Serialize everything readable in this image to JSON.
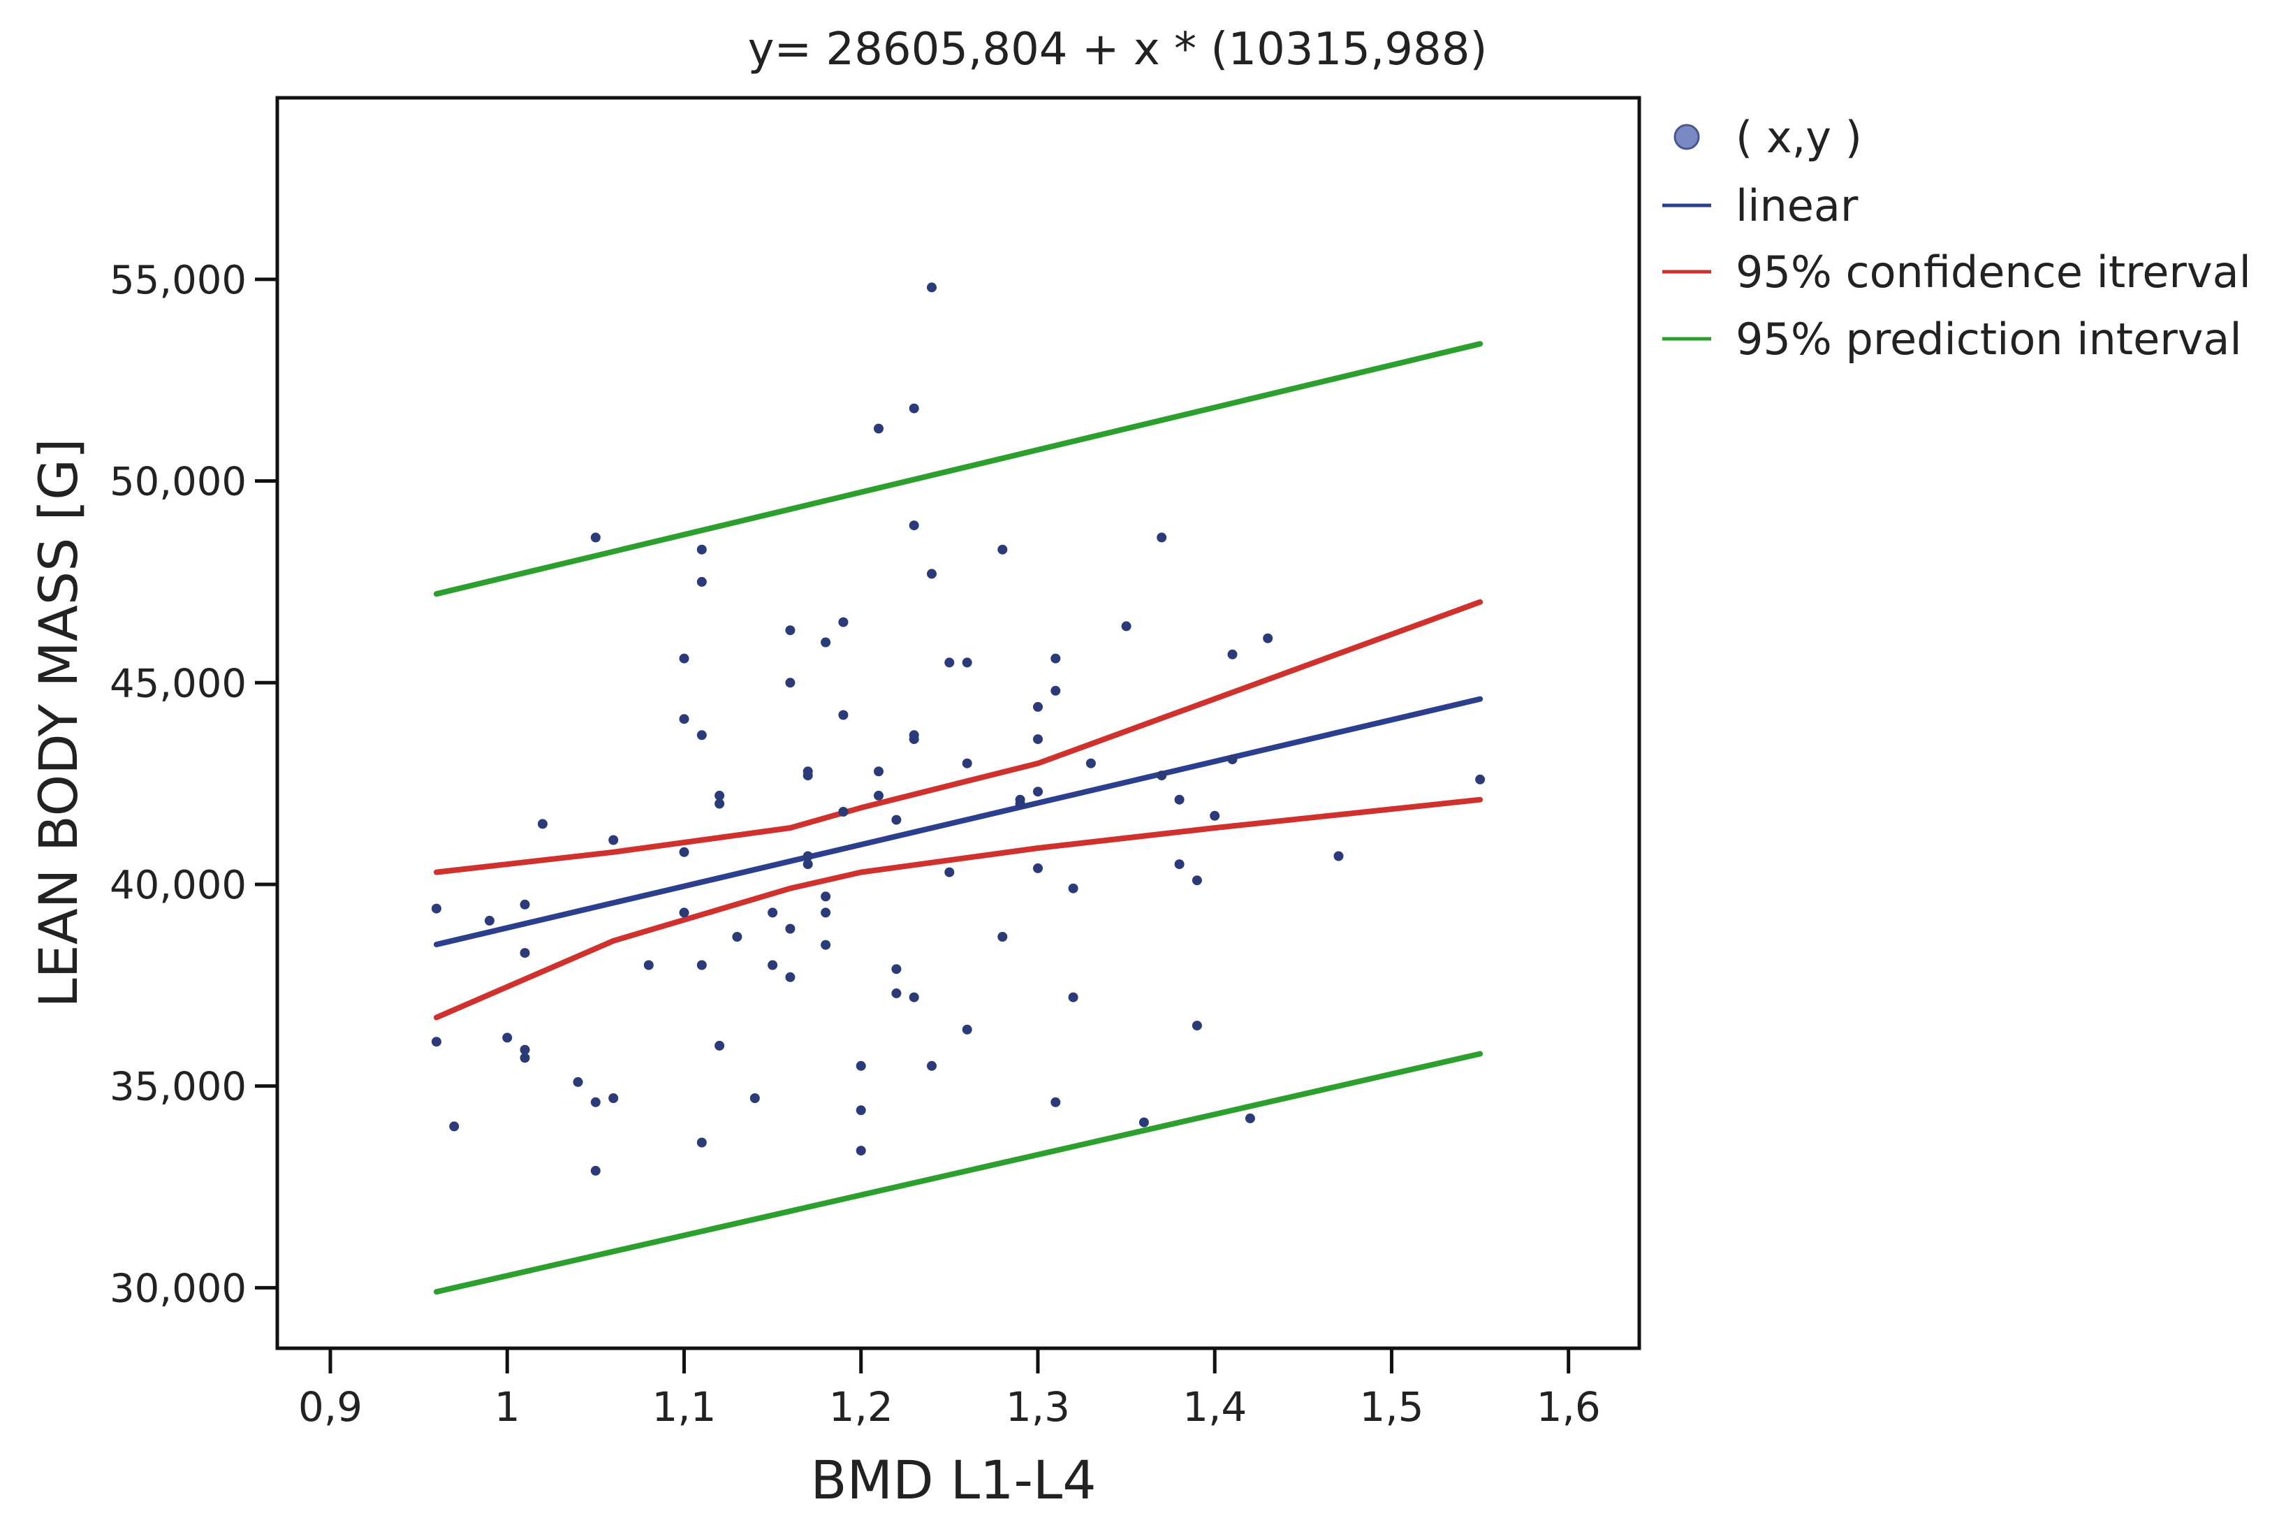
{
  "chart_data": {
    "type": "scatter",
    "title": "y= 28605,804 + x * (10315,988)",
    "xlabel": "BMD L1-L4",
    "ylabel": "LEAN BODY MASS [G]",
    "xlim": [
      0.87,
      1.64
    ],
    "ylim": [
      28500,
      59500
    ],
    "x_ticks": [
      0.9,
      1.0,
      1.1,
      1.2,
      1.3,
      1.4,
      1.5,
      1.6
    ],
    "x_tick_labels": [
      "0,9",
      "1",
      "1,1",
      "1,2",
      "1,3",
      "1,4",
      "1,5",
      "1,6"
    ],
    "y_ticks": [
      30000,
      35000,
      40000,
      45000,
      50000,
      55000
    ],
    "y_tick_labels": [
      "30,000",
      "35,000",
      "40,000",
      "45,000",
      "50,000",
      "55,000"
    ],
    "legend": {
      "position": "outside-right",
      "entries": [
        {
          "label": "( x,y )",
          "kind": "marker",
          "color": "#7b89c2"
        },
        {
          "label": "linear",
          "kind": "line",
          "color": "#2c3f8f"
        },
        {
          "label": "95% confidence itrerval",
          "kind": "line",
          "color": "#d0312d"
        },
        {
          "label": "95% prediction interval",
          "kind": "line",
          "color": "#2ca02c"
        }
      ]
    },
    "colors": {
      "points": "#2b3a78",
      "linear": "#2c3f8f",
      "confidence": "#d0312d",
      "prediction": "#2ca02c"
    },
    "points": [
      [
        0.96,
        39400
      ],
      [
        0.96,
        36100
      ],
      [
        0.97,
        34000
      ],
      [
        0.99,
        39100
      ],
      [
        1.0,
        36200
      ],
      [
        1.01,
        35900
      ],
      [
        1.01,
        35700
      ],
      [
        1.01,
        39500
      ],
      [
        1.01,
        38300
      ],
      [
        1.02,
        41500
      ],
      [
        1.04,
        35100
      ],
      [
        1.05,
        34600
      ],
      [
        1.05,
        32900
      ],
      [
        1.05,
        48600
      ],
      [
        1.06,
        34700
      ],
      [
        1.06,
        41100
      ],
      [
        1.08,
        38000
      ],
      [
        1.1,
        45600
      ],
      [
        1.1,
        44100
      ],
      [
        1.1,
        39300
      ],
      [
        1.1,
        40800
      ],
      [
        1.11,
        43700
      ],
      [
        1.11,
        33600
      ],
      [
        1.11,
        38000
      ],
      [
        1.11,
        48300
      ],
      [
        1.11,
        47500
      ],
      [
        1.12,
        42200
      ],
      [
        1.12,
        42000
      ],
      [
        1.12,
        36000
      ],
      [
        1.13,
        38700
      ],
      [
        1.14,
        34700
      ],
      [
        1.15,
        39300
      ],
      [
        1.15,
        38000
      ],
      [
        1.16,
        46300
      ],
      [
        1.16,
        45000
      ],
      [
        1.16,
        38900
      ],
      [
        1.16,
        37700
      ],
      [
        1.17,
        42800
      ],
      [
        1.17,
        42700
      ],
      [
        1.17,
        40700
      ],
      [
        1.17,
        40500
      ],
      [
        1.18,
        39700
      ],
      [
        1.18,
        38500
      ],
      [
        1.18,
        46000
      ],
      [
        1.18,
        39300
      ],
      [
        1.19,
        46500
      ],
      [
        1.19,
        44200
      ],
      [
        1.19,
        41800
      ],
      [
        1.2,
        35500
      ],
      [
        1.2,
        34400
      ],
      [
        1.2,
        33400
      ],
      [
        1.21,
        51300
      ],
      [
        1.21,
        42800
      ],
      [
        1.21,
        42200
      ],
      [
        1.22,
        41600
      ],
      [
        1.22,
        37900
      ],
      [
        1.22,
        37300
      ],
      [
        1.23,
        43600
      ],
      [
        1.23,
        43700
      ],
      [
        1.23,
        37200
      ],
      [
        1.23,
        51800
      ],
      [
        1.23,
        48900
      ],
      [
        1.24,
        54800
      ],
      [
        1.24,
        47700
      ],
      [
        1.24,
        35500
      ],
      [
        1.25,
        45500
      ],
      [
        1.25,
        40300
      ],
      [
        1.26,
        36400
      ],
      [
        1.26,
        45500
      ],
      [
        1.26,
        43000
      ],
      [
        1.28,
        48300
      ],
      [
        1.28,
        38700
      ],
      [
        1.29,
        42000
      ],
      [
        1.29,
        42100
      ],
      [
        1.3,
        42300
      ],
      [
        1.3,
        40400
      ],
      [
        1.3,
        43600
      ],
      [
        1.3,
        44400
      ],
      [
        1.31,
        44800
      ],
      [
        1.31,
        45600
      ],
      [
        1.31,
        34600
      ],
      [
        1.32,
        37200
      ],
      [
        1.32,
        39900
      ],
      [
        1.33,
        43000
      ],
      [
        1.35,
        46400
      ],
      [
        1.36,
        34100
      ],
      [
        1.37,
        42700
      ],
      [
        1.37,
        48600
      ],
      [
        1.38,
        42100
      ],
      [
        1.38,
        40500
      ],
      [
        1.39,
        36500
      ],
      [
        1.39,
        40100
      ],
      [
        1.4,
        41700
      ],
      [
        1.41,
        45700
      ],
      [
        1.41,
        43100
      ],
      [
        1.42,
        34200
      ],
      [
        1.43,
        46100
      ],
      [
        1.47,
        40700
      ],
      [
        1.55,
        42600
      ]
    ],
    "series": [
      {
        "name": "linear",
        "x": [
          0.96,
          1.55
        ],
        "y": [
          38510,
          44596
        ]
      },
      {
        "name": "95% confidence itrerval",
        "x": [
          0.96,
          1.06,
          1.16,
          1.2,
          1.3,
          1.4,
          1.55
        ],
        "y": [
          40300,
          40800,
          41400,
          41900,
          43000,
          44600,
          47000
        ]
      },
      {
        "name": "95% confidence itrerval",
        "x": [
          0.96,
          1.06,
          1.16,
          1.2,
          1.3,
          1.4,
          1.55
        ],
        "y": [
          36700,
          38600,
          39900,
          40300,
          40900,
          41400,
          42100
        ]
      },
      {
        "name": "95% prediction interval",
        "x": [
          0.96,
          1.55
        ],
        "y": [
          47200,
          53400
        ]
      },
      {
        "name": "95% prediction interval",
        "x": [
          0.96,
          1.55
        ],
        "y": [
          29900,
          35800
        ]
      }
    ]
  }
}
